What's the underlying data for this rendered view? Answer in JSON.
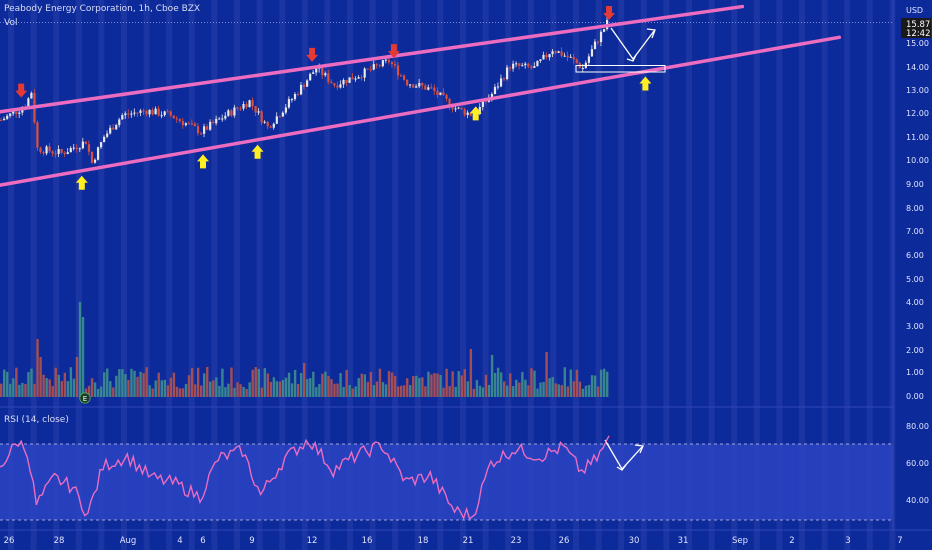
{
  "header": {
    "title": "Peabody Energy Corporation, 1h, Cboe BZX",
    "vol_label": "Vol",
    "rsi_title": "RSI (14, close)",
    "currency": "USD",
    "last_price": "15.87",
    "countdown": "12:42",
    "earnings_marker": "E"
  },
  "colors": {
    "background": "#0d2a9a",
    "channel_line": "#ec6cc0",
    "up_candle": "#e8e8e8",
    "down_candle": "#d9503f",
    "vol_up": "#3d8f8f",
    "vol_down": "#b2524c",
    "rsi_line": "#ec6cc0",
    "rsi_band": "#2b43c2",
    "arrow_red": "#e53935",
    "arrow_yellow": "#ffee22"
  },
  "chart_data": [
    {
      "type": "candlestick",
      "title": "Peabody Energy Corporation, 1h, Cboe BZX",
      "x_tick_labels": [
        "26",
        "28",
        "Aug",
        "4",
        "6",
        "9",
        "12",
        "16",
        "18",
        "21",
        "23",
        "26",
        "30",
        "31",
        "Sep",
        "2",
        "3",
        "7"
      ],
      "price_axis": {
        "labels": [
          "15.00",
          "14.00",
          "13.00",
          "12.00",
          "11.00",
          "10.00",
          "9.00",
          "8.00",
          "7.00",
          "6.00",
          "5.00",
          "4.00",
          "3.00",
          "2.00",
          "1.00",
          "0.00"
        ],
        "currency": "USD"
      },
      "last_price": 15.87,
      "price_path_anchors": [
        {
          "bar": 0,
          "price": 11.7
        },
        {
          "bar": 8,
          "price": 12.3
        },
        {
          "bar": 10,
          "price": 12.9
        },
        {
          "bar": 12,
          "price": 10.5
        },
        {
          "bar": 20,
          "price": 10.3
        },
        {
          "bar": 28,
          "price": 10.8
        },
        {
          "bar": 30,
          "price": 9.9
        },
        {
          "bar": 34,
          "price": 11.0
        },
        {
          "bar": 40,
          "price": 11.9
        },
        {
          "bar": 48,
          "price": 12.1
        },
        {
          "bar": 56,
          "price": 11.9
        },
        {
          "bar": 66,
          "price": 11.2
        },
        {
          "bar": 74,
          "price": 11.9
        },
        {
          "bar": 82,
          "price": 12.5
        },
        {
          "bar": 88,
          "price": 11.4
        },
        {
          "bar": 96,
          "price": 12.6
        },
        {
          "bar": 104,
          "price": 13.9
        },
        {
          "bar": 110,
          "price": 13.2
        },
        {
          "bar": 118,
          "price": 13.6
        },
        {
          "bar": 128,
          "price": 14.2
        },
        {
          "bar": 134,
          "price": 13.3
        },
        {
          "bar": 142,
          "price": 13.0
        },
        {
          "bar": 150,
          "price": 12.2
        },
        {
          "bar": 156,
          "price": 11.9
        },
        {
          "bar": 162,
          "price": 12.8
        },
        {
          "bar": 168,
          "price": 14.0
        },
        {
          "bar": 176,
          "price": 13.9
        },
        {
          "bar": 182,
          "price": 14.7
        },
        {
          "bar": 188,
          "price": 14.3
        },
        {
          "bar": 192,
          "price": 13.9
        },
        {
          "bar": 196,
          "price": 14.9
        },
        {
          "bar": 200,
          "price": 15.8
        }
      ],
      "channel_lines": [
        {
          "name": "upper",
          "from": {
            "bar": 0,
            "price": 12.05
          },
          "to": {
            "bar": 245,
            "price": 16.5
          }
        },
        {
          "name": "lower",
          "from": {
            "bar": 0,
            "price": 8.95
          },
          "to": {
            "bar": 277,
            "price": 15.2
          }
        }
      ],
      "markers": [
        {
          "kind": "resistance",
          "bar": 7
        },
        {
          "kind": "resistance",
          "bar": 103
        },
        {
          "kind": "resistance",
          "bar": 130
        },
        {
          "kind": "resistance",
          "bar": 201
        },
        {
          "kind": "support",
          "bar": 27
        },
        {
          "kind": "support",
          "bar": 67
        },
        {
          "kind": "support",
          "bar": 85
        },
        {
          "kind": "support",
          "bar": 157
        },
        {
          "kind": "support",
          "bar": 213
        }
      ]
    },
    {
      "type": "bar",
      "title": "Vol",
      "note": "volume histogram, relative heights",
      "ylabels": [
        "3.00",
        "2.00",
        "1.00",
        "0.00"
      ]
    },
    {
      "type": "line",
      "title": "RSI (14, close)",
      "ylabels": [
        "80.00",
        "60.00",
        "40.00"
      ],
      "band": [
        30,
        70
      ],
      "rsi_path_anchors": [
        {
          "bar": 0,
          "value": 58
        },
        {
          "bar": 6,
          "value": 71
        },
        {
          "bar": 9,
          "value": 66
        },
        {
          "bar": 12,
          "value": 38
        },
        {
          "bar": 18,
          "value": 52
        },
        {
          "bar": 24,
          "value": 47
        },
        {
          "bar": 29,
          "value": 33
        },
        {
          "bar": 34,
          "value": 58
        },
        {
          "bar": 42,
          "value": 63
        },
        {
          "bar": 50,
          "value": 52
        },
        {
          "bar": 58,
          "value": 49
        },
        {
          "bar": 66,
          "value": 42
        },
        {
          "bar": 72,
          "value": 62
        },
        {
          "bar": 80,
          "value": 66
        },
        {
          "bar": 86,
          "value": 43
        },
        {
          "bar": 94,
          "value": 62
        },
        {
          "bar": 102,
          "value": 72
        },
        {
          "bar": 110,
          "value": 56
        },
        {
          "bar": 118,
          "value": 64
        },
        {
          "bar": 126,
          "value": 69
        },
        {
          "bar": 134,
          "value": 50
        },
        {
          "bar": 142,
          "value": 53
        },
        {
          "bar": 150,
          "value": 35
        },
        {
          "bar": 156,
          "value": 32
        },
        {
          "bar": 162,
          "value": 60
        },
        {
          "bar": 170,
          "value": 67
        },
        {
          "bar": 178,
          "value": 63
        },
        {
          "bar": 186,
          "value": 68
        },
        {
          "bar": 192,
          "value": 55
        },
        {
          "bar": 197,
          "value": 62
        },
        {
          "bar": 201,
          "value": 72
        }
      ]
    }
  ]
}
